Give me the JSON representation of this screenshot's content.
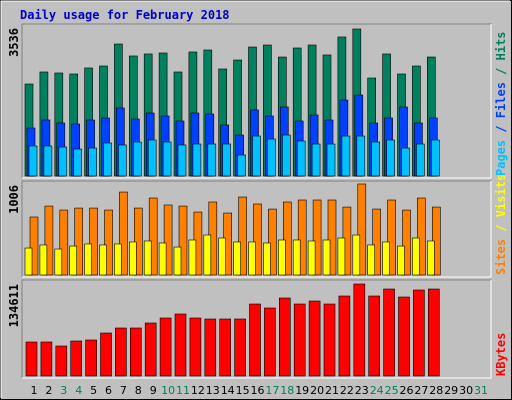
{
  "chart_data": {
    "type": "bar",
    "title": "Daily usage for February 2018",
    "categories": [
      "1",
      "2",
      "3",
      "4",
      "5",
      "6",
      "7",
      "8",
      "9",
      "10",
      "11",
      "12",
      "13",
      "14",
      "15",
      "16",
      "17",
      "18",
      "19",
      "20",
      "21",
      "22",
      "23",
      "24",
      "25",
      "26",
      "27",
      "28",
      "29",
      "30",
      "31"
    ],
    "category_colors": [
      "#000000",
      "#000000",
      "#00805c",
      "#00805c",
      "#000000",
      "#000000",
      "#000000",
      "#000000",
      "#000000",
      "#00805c",
      "#00805c",
      "#000000",
      "#000000",
      "#000000",
      "#000000",
      "#000000",
      "#00805c",
      "#00805c",
      "#000000",
      "#000000",
      "#000000",
      "#000000",
      "#000000",
      "#00805c",
      "#00805c",
      "#000000",
      "#000000",
      "#000000",
      "#000000",
      "#000000",
      "#00805c"
    ],
    "legend_separator": " / ",
    "panels": [
      {
        "ylim": [
          0,
          3536
        ],
        "yticks": [
          3536
        ],
        "series": [
          {
            "name": "Pages",
            "color": "#00c0ff",
            "values": [
              722,
              722,
              697,
              649,
              673,
              794,
              746,
              818,
              866,
              818,
              746,
              770,
              770,
              770,
              505,
              962,
              890,
              986,
              842,
              770,
              770,
              962,
              962,
              818,
              866,
              673,
              770,
              866,
              null,
              null,
              null
            ]
          },
          {
            "name": "Files",
            "color": "#0040ff",
            "values": [
              1155,
              1347,
              1275,
              1251,
              1347,
              1395,
              1636,
              1371,
              1515,
              1443,
              1323,
              1515,
              1491,
              1227,
              986,
              1588,
              1443,
              1660,
              1323,
              1467,
              1347,
              1828,
              1948,
              1275,
              1395,
              1660,
              1275,
              1395,
              null,
              null,
              null
            ]
          },
          {
            "name": "Hits",
            "color": "#00805c",
            "values": [
              2213,
              2502,
              2478,
              2454,
              2598,
              2646,
              3175,
              2887,
              2935,
              2959,
              2502,
              2983,
              3031,
              2574,
              2790,
              3103,
              3151,
              2862,
              3079,
              3151,
              2911,
              3344,
              3536,
              2357,
              2935,
              2454,
              2646,
              2862,
              null,
              null,
              null
            ]
          }
        ]
      },
      {
        "ylim": [
          0,
          1006
        ],
        "yticks": [
          1006
        ],
        "series": [
          {
            "name": "Sites",
            "color": "#ff8000",
            "values": [
              641,
              762,
              718,
              740,
              740,
              718,
              917,
              740,
              851,
              774,
              762,
              696,
              807,
              685,
              862,
              785,
              729,
              807,
              829,
              829,
              829,
              751,
              1006,
              729,
              829,
              718,
              851,
              751,
              null,
              null,
              null
            ]
          },
          {
            "name": "Visits",
            "color": "#ffff00",
            "values": [
              298,
              332,
              287,
              320,
              343,
              332,
              343,
              365,
              376,
              354,
              309,
              387,
              442,
              409,
              365,
              365,
              354,
              387,
              387,
              376,
              387,
              409,
              442,
              332,
              365,
              320,
              409,
              376,
              null,
              null,
              null
            ]
          }
        ]
      },
      {
        "ylim": [
          0,
          134611
        ],
        "yticks": [
          134611
        ],
        "series": [
          {
            "name": "KBytes",
            "color": "#ff0000",
            "values": [
              49742,
              49742,
              43890,
              51205,
              52668,
              62909,
              70224,
              70224,
              77539,
              84854,
              90706,
              84854,
              83391,
              83391,
              83391,
              105336,
              99484,
              114114,
              105336,
              109725,
              105336,
              117040,
              134611,
              117040,
              127281,
              115577,
              125818,
              127281,
              null,
              null,
              null
            ]
          }
        ]
      }
    ]
  }
}
